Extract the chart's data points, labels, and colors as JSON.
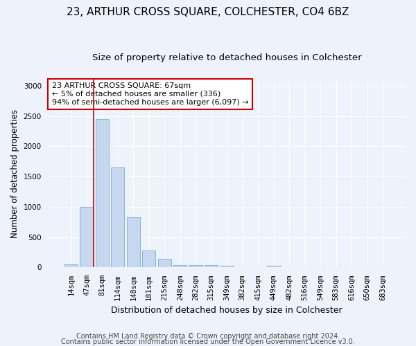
{
  "title1": "23, ARTHUR CROSS SQUARE, COLCHESTER, CO4 6BZ",
  "title2": "Size of property relative to detached houses in Colchester",
  "xlabel": "Distribution of detached houses by size in Colchester",
  "ylabel": "Number of detached properties",
  "bar_labels": [
    "14sqm",
    "47sqm",
    "81sqm",
    "114sqm",
    "148sqm",
    "181sqm",
    "215sqm",
    "248sqm",
    "282sqm",
    "315sqm",
    "349sqm",
    "382sqm",
    "415sqm",
    "449sqm",
    "482sqm",
    "516sqm",
    "549sqm",
    "583sqm",
    "616sqm",
    "650sqm",
    "683sqm"
  ],
  "bar_values": [
    55,
    1000,
    2450,
    1650,
    830,
    275,
    140,
    45,
    45,
    40,
    30,
    0,
    0,
    25,
    0,
    0,
    0,
    0,
    0,
    0,
    0
  ],
  "bar_color": "#c5d8f0",
  "bar_edge_color": "#7aadd4",
  "annotation_text": "23 ARTHUR CROSS SQUARE: 67sqm\n← 5% of detached houses are smaller (336)\n94% of semi-detached houses are larger (6,097) →",
  "annotation_box_color": "#ffffff",
  "annotation_box_edge_color": "#cc0000",
  "vline_color": "#cc0000",
  "vline_x": 1.425,
  "ylim": [
    0,
    3100
  ],
  "yticks": [
    0,
    500,
    1000,
    1500,
    2000,
    2500,
    3000
  ],
  "footer1": "Contains HM Land Registry data © Crown copyright and database right 2024.",
  "footer2": "Contains public sector information licensed under the Open Government Licence v3.0.",
  "background_color": "#eef2fa",
  "plot_bg_color": "#eef2fa",
  "title1_fontsize": 11,
  "title2_fontsize": 9.5,
  "xlabel_fontsize": 9,
  "ylabel_fontsize": 8.5,
  "tick_fontsize": 7.5,
  "footer_fontsize": 7,
  "annotation_fontsize": 8
}
